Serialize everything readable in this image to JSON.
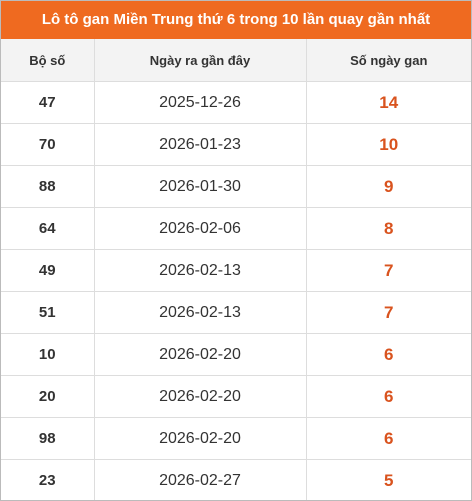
{
  "header": {
    "title": "Lô tô gan Miền Trung thứ 6 trong 10 lần quay gần nhất"
  },
  "table": {
    "columns": [
      "Bộ số",
      "Ngày ra gần đây",
      "Số ngày gan"
    ],
    "rows": [
      [
        47,
        "2025-12-26",
        14
      ],
      [
        70,
        "2026-01-23",
        10
      ],
      [
        88,
        "2026-01-30",
        9
      ],
      [
        64,
        "2026-02-06",
        8
      ],
      [
        49,
        "2026-02-13",
        7
      ],
      [
        51,
        "2026-02-13",
        7
      ],
      [
        10,
        "2026-02-20",
        6
      ],
      [
        20,
        "2026-02-20",
        6
      ],
      [
        98,
        "2026-02-20",
        6
      ],
      [
        23,
        "2026-02-27",
        5
      ]
    ]
  }
}
